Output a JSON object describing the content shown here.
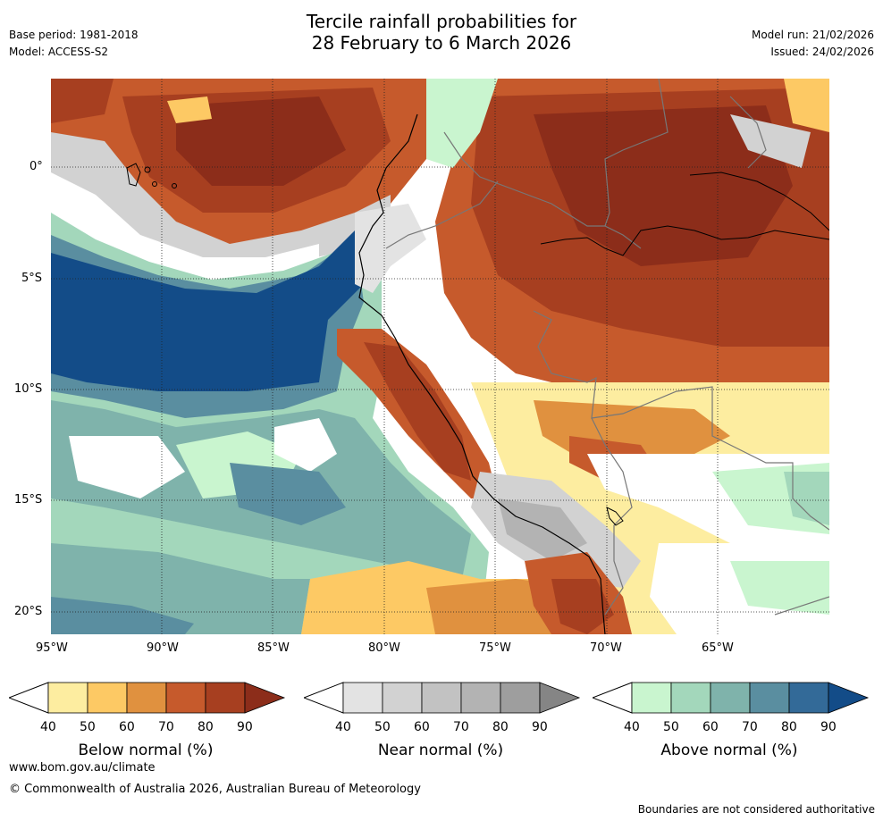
{
  "header": {
    "title_line1": "Tercile rainfall probabilities for",
    "title_line2": "28 February to 6 March 2026",
    "base_period": "Base period: 1981-2018",
    "model": "Model: ACCESS-S2",
    "model_run": "Model run: 21/02/2026",
    "issued": "Issued: 24/02/2026"
  },
  "map": {
    "lat_labels": [
      "0°",
      "5°S",
      "10°S",
      "15°S",
      "20°S"
    ],
    "lon_labels": [
      "95°W",
      "90°W",
      "85°W",
      "80°W",
      "75°W",
      "70°W",
      "65°W"
    ]
  },
  "colorbars": [
    {
      "title": "Below normal (%)",
      "ticks": [
        "40",
        "50",
        "60",
        "70",
        "80",
        "90"
      ],
      "colors": [
        "#fdeda0",
        "#fdc964",
        "#e0913f",
        "#c65a2c",
        "#a73f20",
        "#8c2d1a"
      ]
    },
    {
      "title": "Near normal (%)",
      "ticks": [
        "40",
        "50",
        "60",
        "70",
        "80",
        "90"
      ],
      "colors": [
        "#e3e3e3",
        "#d2d2d2",
        "#c2c2c2",
        "#b3b3b3",
        "#9e9e9e",
        "#858585"
      ]
    },
    {
      "title": "Above normal (%)",
      "ticks": [
        "40",
        "50",
        "60",
        "70",
        "80",
        "90"
      ],
      "colors": [
        "#c9f5cf",
        "#a3d7bb",
        "#7fb3ab",
        "#5a8ea0",
        "#336a98",
        "#134c88"
      ]
    }
  ],
  "footer": {
    "website": "www.bom.gov.au/climate",
    "copyright": "© Commonwealth of Australia 2026, Australian Bureau of Meteorology",
    "disclaimer": "Boundaries are not considered authoritative"
  }
}
